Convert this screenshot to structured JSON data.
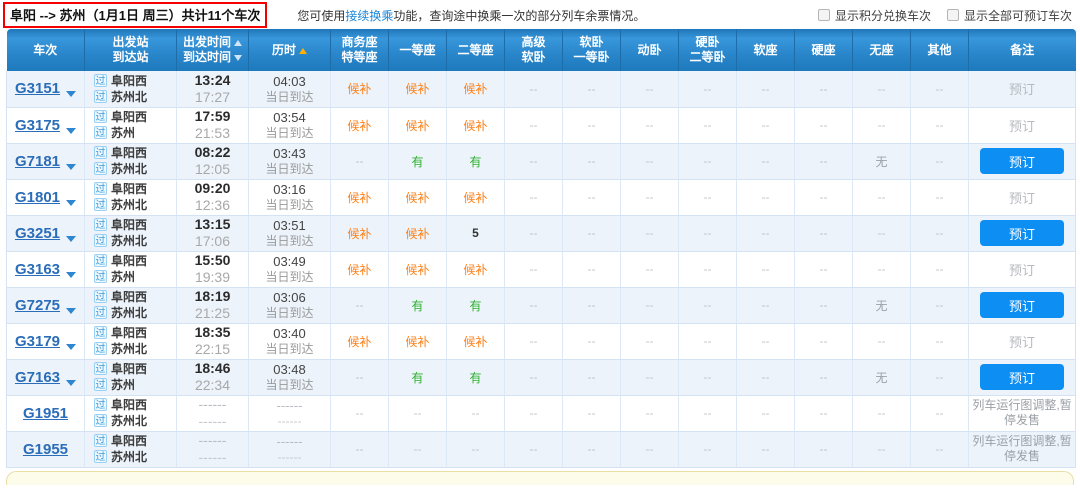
{
  "colors": {
    "header_blue": "#2a86ca",
    "button_blue": "#0d8ef2",
    "waitlist_orange": "#ff7f16",
    "available_green": "#2eb02e",
    "highlight_red": "#f40000",
    "row_alt_blue": "#edf3fb"
  },
  "topbar": {
    "route": {
      "from": "阜阳",
      "arrow": "-->",
      "to": "苏州",
      "date": "（1月1日 周三）",
      "count": "共计11个车次"
    },
    "notice": {
      "prefix": "您可使用",
      "link": "接续换乘",
      "suffix": "功能，查询途中换乘一次的部分列车余票情况。"
    },
    "filters": [
      {
        "label": "显示积分兑换车次",
        "checked": false
      },
      {
        "label": "显示全部可预订车次",
        "checked": false
      }
    ]
  },
  "table": {
    "columns": [
      {
        "line1": "车次"
      },
      {
        "line1": "出发站",
        "line2": "到达站"
      },
      {
        "line1": "出发时间",
        "line2": "到达时间"
      },
      {
        "line1": "历时"
      },
      {
        "line1": "商务座",
        "line2": "特等座"
      },
      {
        "line1": "一等座"
      },
      {
        "line1": "二等座"
      },
      {
        "line1": "高级",
        "line2": "软卧"
      },
      {
        "line1": "软卧",
        "line2": "一等卧"
      },
      {
        "line1": "动卧"
      },
      {
        "line1": "硬卧",
        "line2": "二等卧"
      },
      {
        "line1": "软座"
      },
      {
        "line1": "硬座"
      },
      {
        "line1": "无座"
      },
      {
        "line1": "其他"
      },
      {
        "line1": "备注"
      }
    ],
    "rows": [
      {
        "train": "G3151",
        "expand": true,
        "from_tag": "过",
        "from": "阜阳西",
        "to_tag": "过",
        "to": "苏州北",
        "dep": "13:24",
        "arr": "17:27",
        "duration": "04:03",
        "arrive_day": "当日到达",
        "seats": [
          {
            "text": "候补",
            "type": "wait"
          },
          {
            "text": "候补",
            "type": "wait"
          },
          {
            "text": "候补",
            "type": "wait"
          },
          {
            "text": "--",
            "type": "dash"
          },
          {
            "text": "--",
            "type": "dash"
          },
          {
            "text": "--",
            "type": "dash"
          },
          {
            "text": "--",
            "type": "dash"
          },
          {
            "text": "--",
            "type": "dash"
          },
          {
            "text": "--",
            "type": "dash"
          },
          {
            "text": "--",
            "type": "dash"
          },
          {
            "text": "--",
            "type": "dash"
          }
        ],
        "action": {
          "type": "text",
          "label": "预订"
        }
      },
      {
        "train": "G3175",
        "expand": true,
        "from_tag": "过",
        "from": "阜阳西",
        "to_tag": "过",
        "to": "苏州",
        "dep": "17:59",
        "arr": "21:53",
        "duration": "03:54",
        "arrive_day": "当日到达",
        "seats": [
          {
            "text": "候补",
            "type": "wait"
          },
          {
            "text": "候补",
            "type": "wait"
          },
          {
            "text": "候补",
            "type": "wait"
          },
          {
            "text": "--",
            "type": "dash"
          },
          {
            "text": "--",
            "type": "dash"
          },
          {
            "text": "--",
            "type": "dash"
          },
          {
            "text": "--",
            "type": "dash"
          },
          {
            "text": "--",
            "type": "dash"
          },
          {
            "text": "--",
            "type": "dash"
          },
          {
            "text": "--",
            "type": "dash"
          },
          {
            "text": "--",
            "type": "dash"
          }
        ],
        "action": {
          "type": "text",
          "label": "预订"
        }
      },
      {
        "train": "G7181",
        "expand": true,
        "from_tag": "过",
        "from": "阜阳西",
        "to_tag": "过",
        "to": "苏州北",
        "dep": "08:22",
        "arr": "12:05",
        "duration": "03:43",
        "arrive_day": "当日到达",
        "seats": [
          {
            "text": "--",
            "type": "dash"
          },
          {
            "text": "有",
            "type": "avail"
          },
          {
            "text": "有",
            "type": "avail"
          },
          {
            "text": "--",
            "type": "dash"
          },
          {
            "text": "--",
            "type": "dash"
          },
          {
            "text": "--",
            "type": "dash"
          },
          {
            "text": "--",
            "type": "dash"
          },
          {
            "text": "--",
            "type": "dash"
          },
          {
            "text": "--",
            "type": "dash"
          },
          {
            "text": "无",
            "type": "none"
          },
          {
            "text": "--",
            "type": "dash"
          }
        ],
        "action": {
          "type": "button",
          "label": "预订"
        }
      },
      {
        "train": "G1801",
        "expand": true,
        "from_tag": "过",
        "from": "阜阳西",
        "to_tag": "过",
        "to": "苏州北",
        "dep": "09:20",
        "arr": "12:36",
        "duration": "03:16",
        "arrive_day": "当日到达",
        "seats": [
          {
            "text": "候补",
            "type": "wait"
          },
          {
            "text": "候补",
            "type": "wait"
          },
          {
            "text": "候补",
            "type": "wait"
          },
          {
            "text": "--",
            "type": "dash"
          },
          {
            "text": "--",
            "type": "dash"
          },
          {
            "text": "--",
            "type": "dash"
          },
          {
            "text": "--",
            "type": "dash"
          },
          {
            "text": "--",
            "type": "dash"
          },
          {
            "text": "--",
            "type": "dash"
          },
          {
            "text": "--",
            "type": "dash"
          },
          {
            "text": "--",
            "type": "dash"
          }
        ],
        "action": {
          "type": "text",
          "label": "预订"
        }
      },
      {
        "train": "G3251",
        "expand": true,
        "from_tag": "过",
        "from": "阜阳西",
        "to_tag": "过",
        "to": "苏州北",
        "dep": "13:15",
        "arr": "17:06",
        "duration": "03:51",
        "arrive_day": "当日到达",
        "seats": [
          {
            "text": "候补",
            "type": "wait"
          },
          {
            "text": "候补",
            "type": "wait"
          },
          {
            "text": "5",
            "type": "num"
          },
          {
            "text": "--",
            "type": "dash"
          },
          {
            "text": "--",
            "type": "dash"
          },
          {
            "text": "--",
            "type": "dash"
          },
          {
            "text": "--",
            "type": "dash"
          },
          {
            "text": "--",
            "type": "dash"
          },
          {
            "text": "--",
            "type": "dash"
          },
          {
            "text": "--",
            "type": "dash"
          },
          {
            "text": "--",
            "type": "dash"
          }
        ],
        "action": {
          "type": "button",
          "label": "预订"
        }
      },
      {
        "train": "G3163",
        "expand": true,
        "from_tag": "过",
        "from": "阜阳西",
        "to_tag": "过",
        "to": "苏州",
        "dep": "15:50",
        "arr": "19:39",
        "duration": "03:49",
        "arrive_day": "当日到达",
        "seats": [
          {
            "text": "候补",
            "type": "wait"
          },
          {
            "text": "候补",
            "type": "wait"
          },
          {
            "text": "候补",
            "type": "wait"
          },
          {
            "text": "--",
            "type": "dash"
          },
          {
            "text": "--",
            "type": "dash"
          },
          {
            "text": "--",
            "type": "dash"
          },
          {
            "text": "--",
            "type": "dash"
          },
          {
            "text": "--",
            "type": "dash"
          },
          {
            "text": "--",
            "type": "dash"
          },
          {
            "text": "--",
            "type": "dash"
          },
          {
            "text": "--",
            "type": "dash"
          }
        ],
        "action": {
          "type": "text",
          "label": "预订"
        }
      },
      {
        "train": "G7275",
        "expand": true,
        "from_tag": "过",
        "from": "阜阳西",
        "to_tag": "过",
        "to": "苏州北",
        "dep": "18:19",
        "arr": "21:25",
        "duration": "03:06",
        "arrive_day": "当日到达",
        "seats": [
          {
            "text": "--",
            "type": "dash"
          },
          {
            "text": "有",
            "type": "avail"
          },
          {
            "text": "有",
            "type": "avail"
          },
          {
            "text": "--",
            "type": "dash"
          },
          {
            "text": "--",
            "type": "dash"
          },
          {
            "text": "--",
            "type": "dash"
          },
          {
            "text": "--",
            "type": "dash"
          },
          {
            "text": "--",
            "type": "dash"
          },
          {
            "text": "--",
            "type": "dash"
          },
          {
            "text": "无",
            "type": "none"
          },
          {
            "text": "--",
            "type": "dash"
          }
        ],
        "action": {
          "type": "button",
          "label": "预订"
        }
      },
      {
        "train": "G3179",
        "expand": true,
        "from_tag": "过",
        "from": "阜阳西",
        "to_tag": "过",
        "to": "苏州北",
        "dep": "18:35",
        "arr": "22:15",
        "duration": "03:40",
        "arrive_day": "当日到达",
        "seats": [
          {
            "text": "候补",
            "type": "wait"
          },
          {
            "text": "候补",
            "type": "wait"
          },
          {
            "text": "候补",
            "type": "wait"
          },
          {
            "text": "--",
            "type": "dash"
          },
          {
            "text": "--",
            "type": "dash"
          },
          {
            "text": "--",
            "type": "dash"
          },
          {
            "text": "--",
            "type": "dash"
          },
          {
            "text": "--",
            "type": "dash"
          },
          {
            "text": "--",
            "type": "dash"
          },
          {
            "text": "--",
            "type": "dash"
          },
          {
            "text": "--",
            "type": "dash"
          }
        ],
        "action": {
          "type": "text",
          "label": "预订"
        }
      },
      {
        "train": "G7163",
        "expand": true,
        "from_tag": "过",
        "from": "阜阳西",
        "to_tag": "过",
        "to": "苏州",
        "dep": "18:46",
        "arr": "22:34",
        "duration": "03:48",
        "arrive_day": "当日到达",
        "seats": [
          {
            "text": "--",
            "type": "dash"
          },
          {
            "text": "有",
            "type": "avail"
          },
          {
            "text": "有",
            "type": "avail"
          },
          {
            "text": "--",
            "type": "dash"
          },
          {
            "text": "--",
            "type": "dash"
          },
          {
            "text": "--",
            "type": "dash"
          },
          {
            "text": "--",
            "type": "dash"
          },
          {
            "text": "--",
            "type": "dash"
          },
          {
            "text": "--",
            "type": "dash"
          },
          {
            "text": "无",
            "type": "none"
          },
          {
            "text": "--",
            "type": "dash"
          }
        ],
        "action": {
          "type": "button",
          "label": "预订"
        }
      },
      {
        "train": "G1951",
        "expand": false,
        "from_tag": "过",
        "from": "阜阳西",
        "to_tag": "过",
        "to": "苏州北",
        "dep": "------",
        "arr": "------",
        "duration": "------",
        "arrive_day": "------",
        "seats": [
          {
            "text": "--",
            "type": "dash"
          },
          {
            "text": "--",
            "type": "dash"
          },
          {
            "text": "--",
            "type": "dash"
          },
          {
            "text": "--",
            "type": "dash"
          },
          {
            "text": "--",
            "type": "dash"
          },
          {
            "text": "--",
            "type": "dash"
          },
          {
            "text": "--",
            "type": "dash"
          },
          {
            "text": "--",
            "type": "dash"
          },
          {
            "text": "--",
            "type": "dash"
          },
          {
            "text": "--",
            "type": "dash"
          },
          {
            "text": "--",
            "type": "dash"
          }
        ],
        "action": {
          "type": "note",
          "label": "列车运行图调整,暂停发售"
        }
      },
      {
        "train": "G1955",
        "expand": false,
        "from_tag": "过",
        "from": "阜阳西",
        "to_tag": "过",
        "to": "苏州北",
        "dep": "------",
        "arr": "------",
        "duration": "------",
        "arrive_day": "------",
        "seats": [
          {
            "text": "--",
            "type": "dash"
          },
          {
            "text": "--",
            "type": "dash"
          },
          {
            "text": "--",
            "type": "dash"
          },
          {
            "text": "--",
            "type": "dash"
          },
          {
            "text": "--",
            "type": "dash"
          },
          {
            "text": "--",
            "type": "dash"
          },
          {
            "text": "--",
            "type": "dash"
          },
          {
            "text": "--",
            "type": "dash"
          },
          {
            "text": "--",
            "type": "dash"
          },
          {
            "text": "--",
            "type": "dash"
          },
          {
            "text": "--",
            "type": "dash"
          }
        ],
        "action": {
          "type": "note",
          "label": "列车运行图调整,暂停发售"
        }
      }
    ]
  }
}
